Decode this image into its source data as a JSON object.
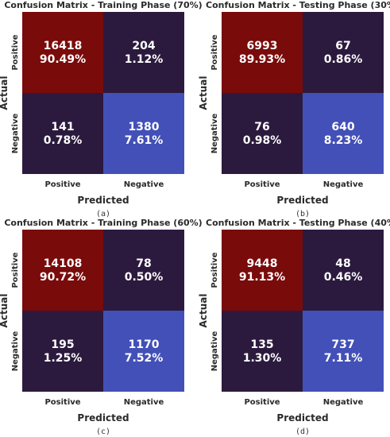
{
  "chart_data": [
    {
      "type": "heatmap",
      "panel": "(a)",
      "title": "Confusion Matrix - Training Phase (70%)",
      "xlabel": "Predicted",
      "ylabel": "Actual",
      "x_categories": [
        "Positive",
        "Negative"
      ],
      "y_categories": [
        "Positive",
        "Negative"
      ],
      "matrix": [
        [
          16418,
          204
        ],
        [
          141,
          1380
        ]
      ],
      "percentages": [
        [
          "90.49%",
          "1.12%"
        ],
        [
          "0.78%",
          "7.61%"
        ]
      ]
    },
    {
      "type": "heatmap",
      "panel": "(b)",
      "title": "Confusion Matrix - Testing Phase (30%)",
      "xlabel": "Predicted",
      "ylabel": "Actual",
      "x_categories": [
        "Positive",
        "Negative"
      ],
      "y_categories": [
        "Positive",
        "Negative"
      ],
      "matrix": [
        [
          6993,
          67
        ],
        [
          76,
          640
        ]
      ],
      "percentages": [
        [
          "89.93%",
          "0.86%"
        ],
        [
          "0.98%",
          "8.23%"
        ]
      ]
    },
    {
      "type": "heatmap",
      "panel": "(c)",
      "title": "Confusion Matrix - Training Phase (60%)",
      "xlabel": "Predicted",
      "ylabel": "Actual",
      "x_categories": [
        "Positive",
        "Negative"
      ],
      "y_categories": [
        "Positive",
        "Negative"
      ],
      "matrix": [
        [
          14108,
          78
        ],
        [
          195,
          1170
        ]
      ],
      "percentages": [
        [
          "90.72%",
          "0.50%"
        ],
        [
          "1.25%",
          "7.52%"
        ]
      ]
    },
    {
      "type": "heatmap",
      "panel": "(d)",
      "title": "Confusion Matrix - Testing Phase (40%)",
      "xlabel": "Predicted",
      "ylabel": "Actual",
      "x_categories": [
        "Positive",
        "Negative"
      ],
      "y_categories": [
        "Positive",
        "Negative"
      ],
      "matrix": [
        [
          9448,
          48
        ],
        [
          135,
          737
        ]
      ],
      "percentages": [
        [
          "91.13%",
          "0.46%"
        ],
        [
          "1.30%",
          "7.11%"
        ]
      ]
    }
  ],
  "colors": {
    "true_positive": "#7a0b0b",
    "true_negative": "#4350b8",
    "off_diagonal": "#2c1a3e",
    "text": "#2a2a2a",
    "cell_text": "#ffffff"
  }
}
